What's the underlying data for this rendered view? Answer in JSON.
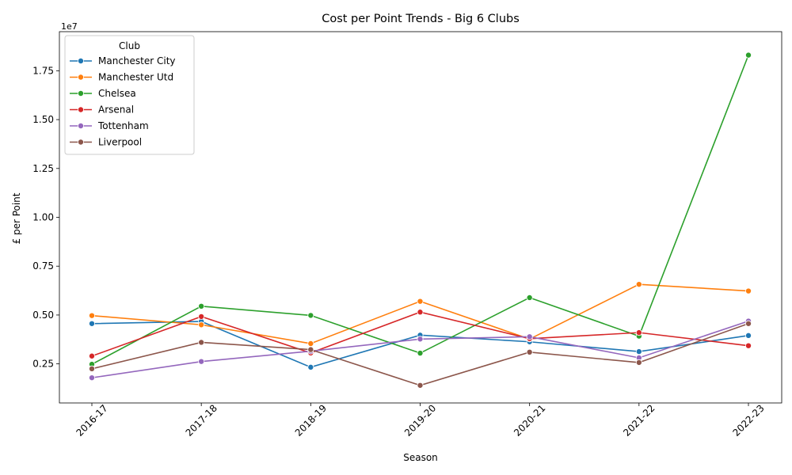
{
  "chart_data": {
    "type": "line",
    "title": "Cost per Point Trends - Big 6 Clubs",
    "xlabel": "Season",
    "ylabel": "£ per Point",
    "y_offset_label": "1e7",
    "categories": [
      "2016-17",
      "2017-18",
      "2018-19",
      "2019-20",
      "2020-21",
      "2021-22",
      "2022-23"
    ],
    "ylim": [
      500000,
      19500000
    ],
    "yticks": [
      2500000,
      5000000,
      7500000,
      10000000,
      12500000,
      15000000,
      17500000
    ],
    "ytick_labels": [
      "0.25",
      "0.50",
      "0.75",
      "1.00",
      "1.25",
      "1.50",
      "1.75"
    ],
    "grid": false,
    "legend": {
      "title": "Club",
      "placement": "top-left"
    },
    "series": [
      {
        "name": "Manchester City",
        "color": "#1f77b4",
        "values": [
          4560000,
          4670000,
          2330000,
          3970000,
          3630000,
          3130000,
          3950000
        ]
      },
      {
        "name": "Manchester Utd",
        "color": "#ff7f0e",
        "values": [
          4970000,
          4500000,
          3540000,
          5700000,
          3770000,
          6570000,
          6230000
        ]
      },
      {
        "name": "Chelsea",
        "color": "#2ca02c",
        "values": [
          2480000,
          5450000,
          4980000,
          3050000,
          5890000,
          3920000,
          18300000
        ]
      },
      {
        "name": "Arsenal",
        "color": "#d62728",
        "values": [
          2900000,
          4920000,
          3060000,
          5150000,
          3790000,
          4100000,
          3430000
        ]
      },
      {
        "name": "Tottenham",
        "color": "#9467bd",
        "values": [
          1790000,
          2620000,
          3150000,
          3770000,
          3890000,
          2810000,
          4690000
        ]
      },
      {
        "name": "Liverpool",
        "color": "#8c564b",
        "values": [
          2250000,
          3600000,
          3230000,
          1400000,
          3100000,
          2570000,
          4560000
        ]
      }
    ]
  }
}
